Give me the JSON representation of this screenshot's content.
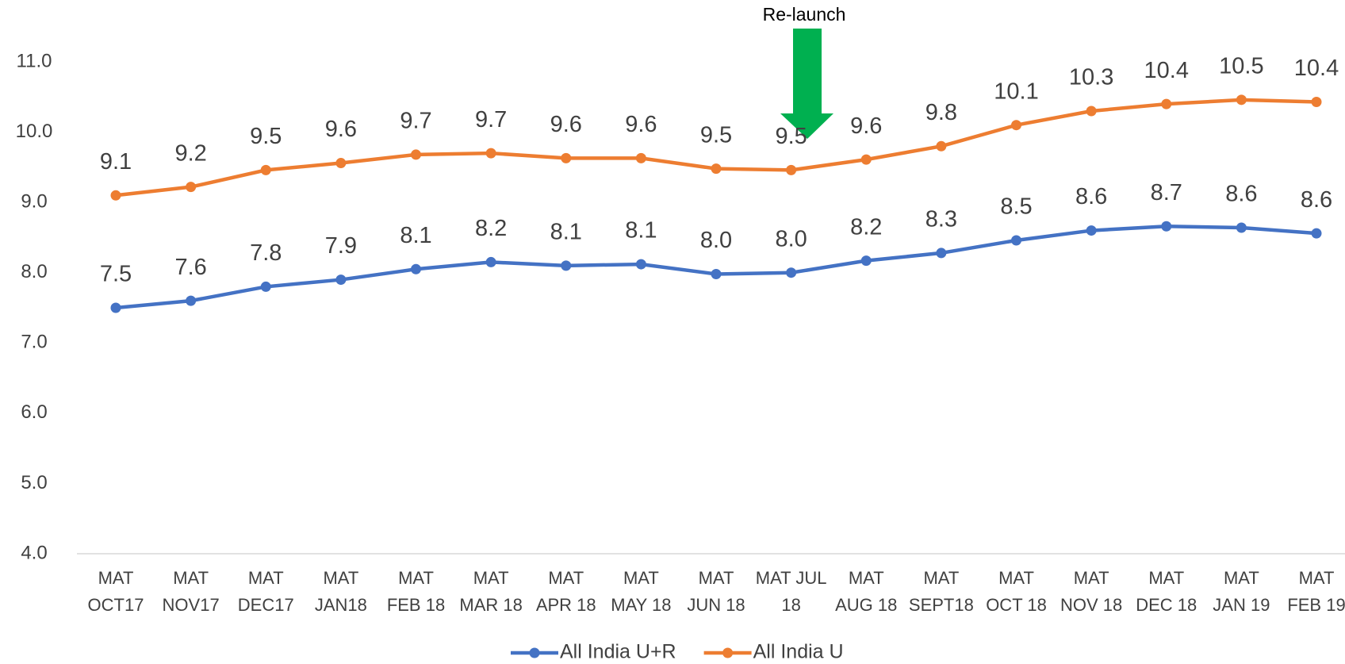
{
  "chart_data": {
    "type": "line",
    "annotations": [
      {
        "text": "Re-launch",
        "category": 9
      }
    ],
    "categories": [
      "MAT\nOCT17",
      "MAT\nNOV17",
      "MAT\nDEC17",
      "MAT\nJAN18",
      "MAT\nFEB 18",
      "MAT\nMAR 18",
      "MAT\nAPR 18",
      "MAT\nMAY 18",
      "MAT\nJUN 18",
      "MAT JUL\n18",
      "MAT\nAUG 18",
      "MAT\nSEPT18",
      "MAT\nOCT 18",
      "MAT\nNOV 18",
      "MAT\nDEC 18",
      "MAT\nJAN 19",
      "MAT\nFEB 19"
    ],
    "series": [
      {
        "name": "All India U+R",
        "color": "#4472c4",
        "values": [
          7.5,
          7.6,
          7.8,
          7.9,
          8.05,
          8.15,
          8.1,
          8.12,
          7.98,
          8.0,
          8.17,
          8.28,
          8.46,
          8.6,
          8.66,
          8.64,
          8.56
        ],
        "value_labels": [
          "7.5",
          "7.6",
          "7.8",
          "7.9",
          "8.1",
          "8.2",
          "8.1",
          "8.1",
          "8.0",
          "8.0",
          "8.2",
          "8.3",
          "8.5",
          "8.6",
          "8.7",
          "8.6",
          "8.6"
        ]
      },
      {
        "name": "All India U",
        "color": "#ed7d31",
        "values": [
          9.1,
          9.22,
          9.46,
          9.56,
          9.68,
          9.7,
          9.63,
          9.63,
          9.48,
          9.46,
          9.61,
          9.8,
          10.1,
          10.3,
          10.4,
          10.46,
          10.43
        ],
        "value_labels": [
          "9.1",
          "9.2",
          "9.5",
          "9.6",
          "9.7",
          "9.7",
          "9.6",
          "9.6",
          "9.5",
          "9.5",
          "9.6",
          "9.8",
          "10.1",
          "10.3",
          "10.4",
          "10.5",
          "10.4"
        ]
      }
    ],
    "ylim": [
      4,
      11
    ],
    "yticks": [
      {
        "value": 4,
        "label": "4.0"
      },
      {
        "value": 5,
        "label": "5.0"
      },
      {
        "value": 6,
        "label": "6.0"
      },
      {
        "value": 7,
        "label": "7.0"
      },
      {
        "value": 8,
        "label": "8.0"
      },
      {
        "value": 9,
        "label": "9.0"
      },
      {
        "value": 10,
        "label": "10.0"
      },
      {
        "value": 11,
        "label": "11.0"
      }
    ],
    "grid": false,
    "legend": "bottom"
  }
}
